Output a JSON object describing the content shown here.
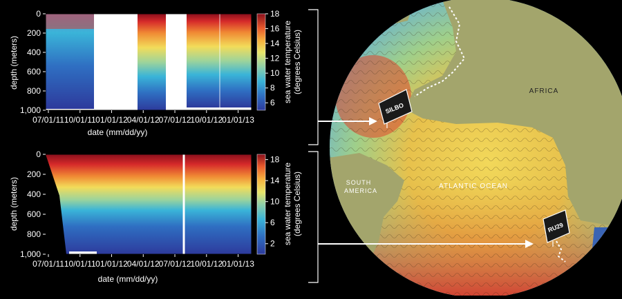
{
  "chart_data": [
    {
      "type": "heatmap",
      "xlabel": "date (mm/dd/yy)",
      "ylabel": "depth (meters)",
      "x_ticks": [
        "07/01/11",
        "10/01/11",
        "01/01/12",
        "04/01/12",
        "07/01/12",
        "10/01/12",
        "01/01/13"
      ],
      "y_ticks": [
        "0",
        "200",
        "400",
        "600",
        "800",
        "1,000"
      ],
      "ylim": [
        1000,
        0
      ],
      "colorbar": {
        "label_line1": "sea water temperature",
        "label_line2": "(degrees Celsius)",
        "ticks": [
          "18",
          "16",
          "14",
          "12",
          "10",
          "8",
          "6"
        ],
        "range": [
          5,
          18
        ]
      },
      "data_gaps": [
        [
          "11/15/11",
          "03/15/12"
        ],
        [
          "06/15/12",
          "08/01/12"
        ]
      ],
      "series": [
        {
          "depth": [
            0,
            100,
            200,
            300,
            400,
            500,
            600,
            700,
            800,
            950
          ],
          "temperature": [
            16.5,
            15.0,
            13.5,
            12.5,
            11.5,
            10.5,
            9.5,
            8.5,
            7.5,
            6.5
          ]
        }
      ]
    },
    {
      "type": "heatmap",
      "xlabel": "date (mm/dd/yy)",
      "ylabel": "depth (meters)",
      "x_ticks": [
        "07/01/11",
        "10/01/11",
        "01/01/12",
        "04/01/12",
        "07/01/12",
        "10/01/12",
        "01/01/13"
      ],
      "y_ticks": [
        "0",
        "200",
        "400",
        "600",
        "800",
        "1,000"
      ],
      "ylim": [
        1000,
        0
      ],
      "colorbar": {
        "label_line1": "sea water temperature",
        "label_line2": "(degrees Celsius)",
        "ticks": [
          "18",
          "14",
          "10",
          "6",
          "2"
        ],
        "range": [
          0,
          19
        ]
      },
      "series": [
        {
          "depth": [
            0,
            100,
            200,
            300,
            400,
            500,
            600,
            700,
            800,
            950
          ],
          "temperature": [
            18.0,
            16.0,
            14.0,
            12.0,
            10.0,
            7.5,
            5.5,
            4.0,
            3.0,
            2.5
          ]
        }
      ]
    }
  ],
  "map": {
    "labels": {
      "africa": "AFRICA",
      "south_america_1": "SOUTH",
      "south_america_2": "AMERICA",
      "ocean": "ATLANTIC OCEAN"
    },
    "gliders": {
      "north": "SILBO",
      "south": "RU29"
    }
  },
  "colors": {
    "background": "#000000",
    "land": "#a3a56c",
    "ocean_deep": "#3a64b4",
    "temp_scale": [
      "#2d3a9c",
      "#2f6fc2",
      "#3ab4d8",
      "#8fd0a8",
      "#e8e66a",
      "#f6b23e",
      "#e85a2c",
      "#c0202a",
      "#8a0f1c"
    ]
  }
}
